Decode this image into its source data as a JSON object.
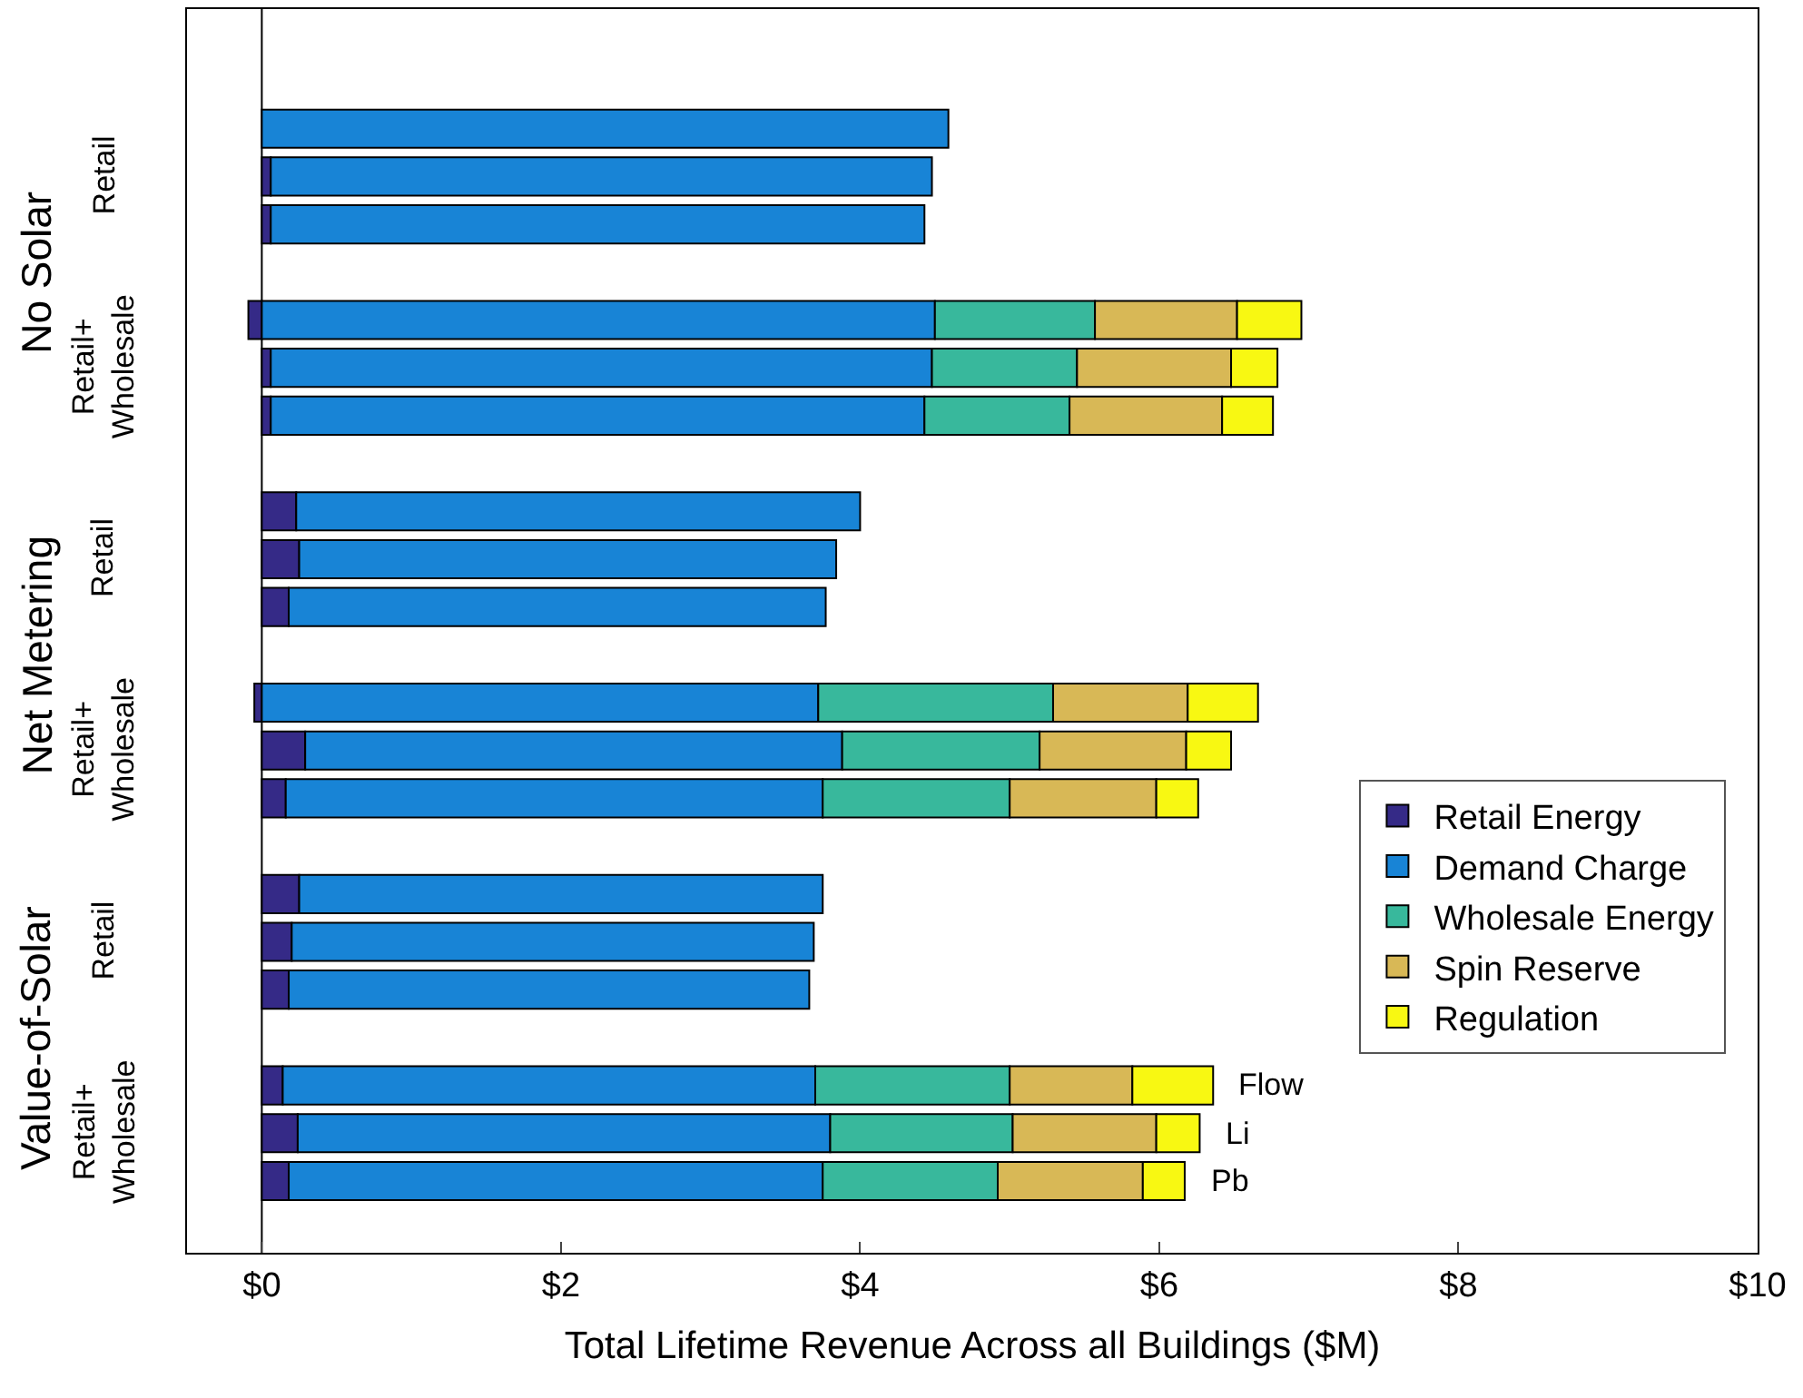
{
  "chart_data": {
    "type": "bar",
    "orientation": "horizontal",
    "stacked": true,
    "categories": [
      null,
      null,
      null,
      null,
      null,
      null,
      null,
      null,
      null,
      null,
      null,
      null,
      null,
      null,
      null,
      null,
      null,
      null,
      null,
      null,
      null,
      null,
      null,
      null,
      null,
      null
    ],
    "series": [
      {
        "name": "Retail Energy",
        "color": "#352a87",
        "values": [
          null,
          null,
          null,
          0.06,
          0.06,
          null,
          -0.09,
          0.06,
          0.06,
          null,
          0.23,
          0.25,
          0.18,
          null,
          -0.05,
          0.29,
          0.16,
          null,
          0.25,
          0.2,
          0.18,
          null,
          0.14,
          0.24,
          0.18,
          null
        ]
      },
      {
        "name": "Demand Charge",
        "color": "#1884d6",
        "values": [
          null,
          null,
          4.59,
          4.42,
          4.37,
          null,
          4.5,
          4.42,
          4.37,
          null,
          3.77,
          3.59,
          3.59,
          null,
          3.72,
          3.59,
          3.59,
          null,
          3.5,
          3.49,
          3.48,
          null,
          3.56,
          3.56,
          3.57,
          null
        ]
      },
      {
        "name": "Wholesale Energy",
        "color": "#38b89c",
        "values": [
          null,
          null,
          null,
          null,
          null,
          null,
          1.07,
          0.97,
          0.97,
          null,
          null,
          null,
          null,
          null,
          1.57,
          1.32,
          1.25,
          null,
          null,
          null,
          null,
          null,
          1.3,
          1.22,
          1.17,
          null
        ]
      },
      {
        "name": "Spin Reserve",
        "color": "#d8b856",
        "values": [
          null,
          null,
          null,
          null,
          null,
          null,
          0.95,
          1.03,
          1.02,
          null,
          null,
          null,
          null,
          null,
          0.9,
          0.98,
          0.98,
          null,
          null,
          null,
          null,
          null,
          0.82,
          0.96,
          0.97,
          null
        ]
      },
      {
        "name": "Regulation",
        "color": "#f8f812",
        "values": [
          null,
          null,
          null,
          null,
          null,
          null,
          0.43,
          0.31,
          0.34,
          null,
          null,
          null,
          null,
          null,
          0.47,
          0.3,
          0.28,
          null,
          null,
          null,
          null,
          null,
          0.54,
          0.29,
          0.28,
          null
        ]
      }
    ],
    "xlabel": "Total Lifetime Revenue Across all Buildings ($M)",
    "xlim": [
      -0.5,
      10
    ],
    "xticks": [
      {
        "value": 0,
        "label": "$0"
      },
      {
        "value": 2,
        "label": "$2"
      },
      {
        "value": 4,
        "label": "$4"
      },
      {
        "value": 6,
        "label": "$6"
      },
      {
        "value": 8,
        "label": "$8"
      },
      {
        "value": 10,
        "label": "$10"
      }
    ],
    "tick_labels": "x",
    "grid": false,
    "ref_lines": [
      {
        "axis": "x",
        "value": 0,
        "color": "#000000"
      }
    ],
    "legend": "bottom right",
    "annotations": [
      "No Solar",
      "Net Metering",
      "Value-of-Solar",
      "Retail",
      "Retail+\nWholesale",
      "Retail",
      "Retail+\nWholesale",
      "Retail",
      "Retail+\nWholesale",
      "Flow",
      "Li",
      "Pb"
    ]
  }
}
